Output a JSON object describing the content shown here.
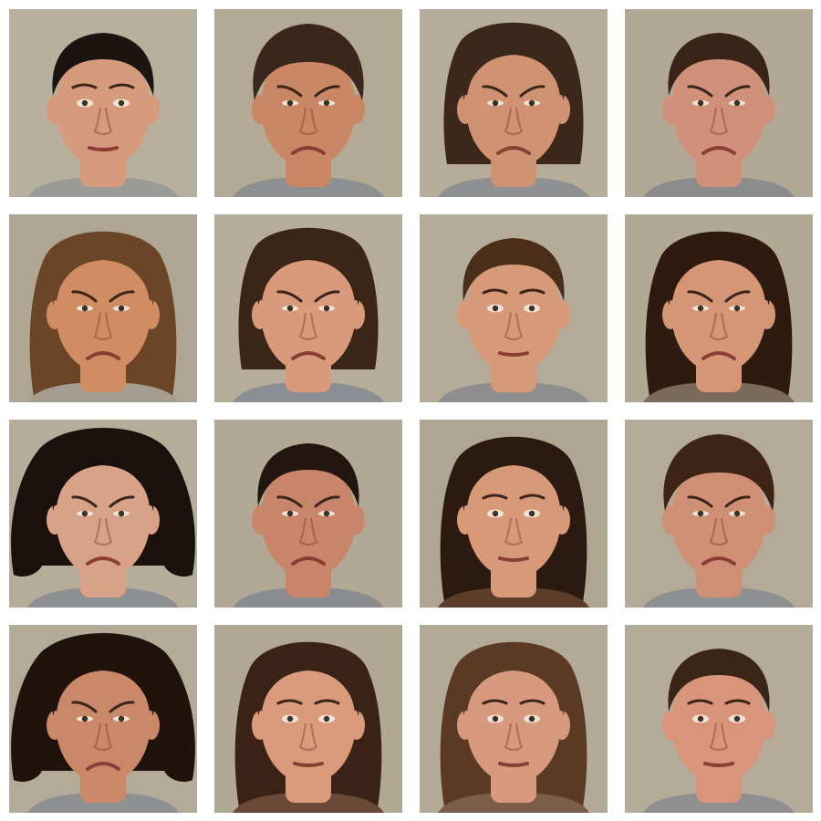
{
  "photos": [
    {
      "hair": "#1b1410",
      "skin": "#d69b7c",
      "bg": "#b7b09d",
      "style": "short",
      "mouth": "neutral",
      "shirt": "#9a9a98"
    },
    {
      "hair": "#3a261a",
      "skin": "#c98766",
      "bg": "#b2aa95",
      "style": "messy",
      "mouth": "frown",
      "shirt": "#8d8f91"
    },
    {
      "hair": "#3c271b",
      "skin": "#cf9374",
      "bg": "#b5ad99",
      "style": "bob",
      "mouth": "frown",
      "shirt": "#8f9092"
    },
    {
      "hair": "#3a2417",
      "skin": "#d0907a",
      "bg": "#b1a995",
      "style": "short",
      "mouth": "frown",
      "shirt": "#8c8c8c"
    },
    {
      "hair": "#6a4527",
      "skin": "#d08c62",
      "bg": "#aea692",
      "style": "long",
      "mouth": "frown",
      "shirt": "#a59e90"
    },
    {
      "hair": "#3a2516",
      "skin": "#d99a7b",
      "bg": "#b5ad99",
      "style": "bob",
      "mouth": "frown",
      "shirt": "#8b8e92"
    },
    {
      "hair": "#4a2e1a",
      "skin": "#d79a79",
      "bg": "#b4ac98",
      "style": "short",
      "mouth": "neutral",
      "shirt": "#8e8e8e"
    },
    {
      "hair": "#2e1a0f",
      "skin": "#d49674",
      "bg": "#b1a994",
      "style": "long",
      "mouth": "frown",
      "shirt": "#7b6a5a"
    },
    {
      "hair": "#1a110c",
      "skin": "#d7a287",
      "bg": "#b5ad9a",
      "style": "curly",
      "mouth": "frown",
      "shirt": "#8d8f92"
    },
    {
      "hair": "#23160f",
      "skin": "#c8856a",
      "bg": "#b1a995",
      "style": "short",
      "mouth": "frown",
      "shirt": "#8a8c8f"
    },
    {
      "hair": "#2c1a10",
      "skin": "#d79a78",
      "bg": "#aea690",
      "style": "long",
      "mouth": "neutral",
      "shirt": "#5b3d2a"
    },
    {
      "hair": "#3d2415",
      "skin": "#cf8f74",
      "bg": "#b3ab97",
      "style": "messy",
      "mouth": "frown",
      "shirt": "#8e8f91"
    },
    {
      "hair": "#1f130c",
      "skin": "#c98867",
      "bg": "#b3ab97",
      "style": "curly",
      "mouth": "frown",
      "shirt": "#8d8f92"
    },
    {
      "hair": "#3a2316",
      "skin": "#d99b7c",
      "bg": "#b0a893",
      "style": "long",
      "mouth": "neutral",
      "shirt": "#6a4a36"
    },
    {
      "hair": "#5a3a25",
      "skin": "#d89a7e",
      "bg": "#b2aa96",
      "style": "long",
      "mouth": "neutral",
      "shirt": "#7b5e4a"
    },
    {
      "hair": "#3b2517",
      "skin": "#d8957c",
      "bg": "#b4ac98",
      "style": "short",
      "mouth": "neutral",
      "shirt": "#8f8f8f"
    }
  ]
}
